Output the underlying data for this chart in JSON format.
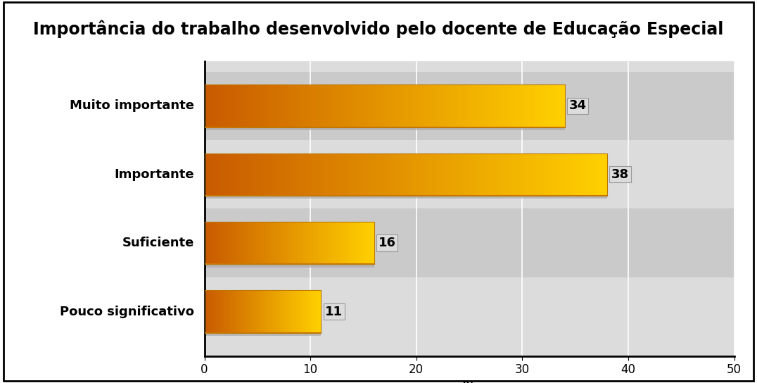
{
  "title": "Importância do trabalho desenvolvido pelo docente de Educação Especial",
  "categories": [
    "Pouco significativo",
    "Suficiente",
    "Importante",
    "Muito importante"
  ],
  "values": [
    11,
    16,
    38,
    34
  ],
  "xlabel": "%",
  "xlim": [
    0,
    50
  ],
  "xticks": [
    0,
    10,
    20,
    30,
    40,
    50
  ],
  "bar_color_left": "#C85A00",
  "bar_color_right": "#FFD000",
  "bar_edge_color": "#CC8800",
  "bar_shadow_color": "#AAAAAA",
  "title_fontsize": 17,
  "label_fontsize": 13,
  "tick_fontsize": 12,
  "xlabel_fontsize": 14,
  "plot_bg_color": "#DCDCDC",
  "label_area_bg": "#FFFFFF",
  "outer_bg_color": "#FFFFFF",
  "grid_color": "#FFFFFF",
  "band_colors": [
    "#DCDCDC",
    "#CACACA"
  ],
  "bar_height": 0.62
}
